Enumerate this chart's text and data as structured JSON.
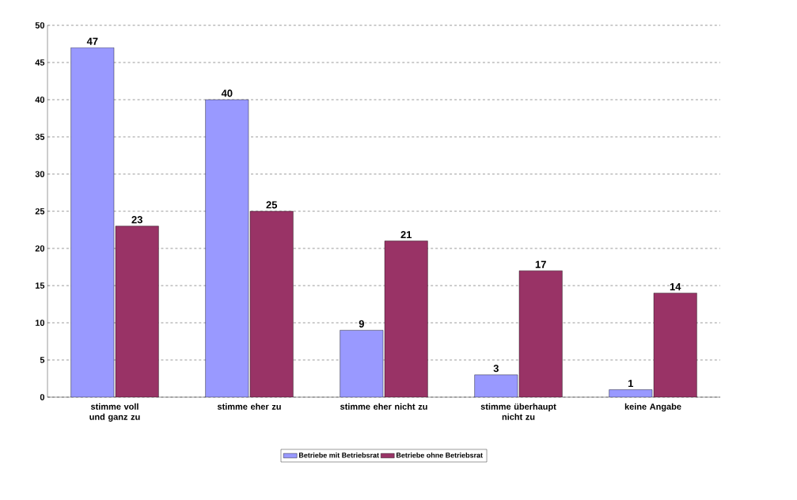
{
  "chart_data": {
    "type": "bar",
    "categories": [
      "stimme voll und ganz zu",
      "stimme eher zu",
      "stimme eher nicht zu",
      "stimme überhaupt nicht zu",
      "keine Angabe"
    ],
    "series": [
      {
        "name": "Betriebe mit Betriebsrat",
        "color": "#9999ff",
        "values": [
          47,
          40,
          9,
          3,
          1
        ]
      },
      {
        "name": "Betriebe ohne Betriebsrat",
        "color": "#993366",
        "values": [
          23,
          25,
          21,
          17,
          14
        ]
      }
    ],
    "ylim": [
      0,
      50
    ],
    "yticks": [
      0,
      5,
      10,
      15,
      20,
      25,
      30,
      35,
      40,
      45,
      50
    ],
    "grid": "y",
    "legend": "bottom",
    "data_labels": true
  }
}
